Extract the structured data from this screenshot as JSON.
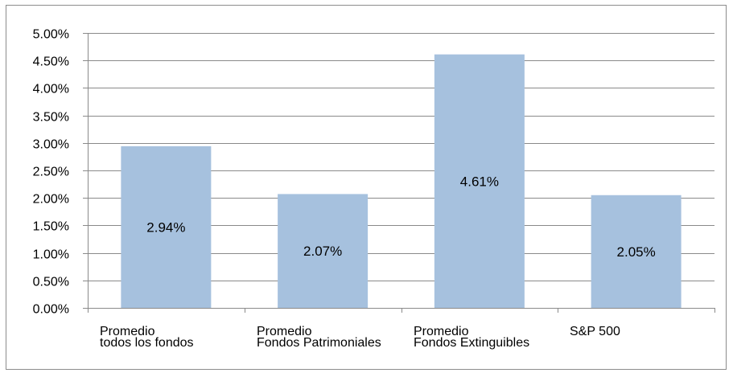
{
  "chart_data": {
    "type": "bar",
    "title": "",
    "xlabel": "",
    "ylabel": "",
    "categories": [
      [
        "Promedio",
        "todos los fondos"
      ],
      [
        "Promedio",
        "Fondos Patrimoniales"
      ],
      [
        "Promedio",
        "Fondos Extinguibles"
      ],
      [
        "S&P 500"
      ]
    ],
    "values": [
      2.94,
      2.07,
      4.61,
      2.05
    ],
    "data_labels": [
      "2.94%",
      "2.07%",
      "4.61%",
      "2.05%"
    ],
    "ylim": [
      0,
      5
    ],
    "yticks": [
      0,
      0.5,
      1,
      1.5,
      2,
      2.5,
      3,
      3.5,
      4,
      4.5,
      5
    ],
    "ytick_labels": [
      "0.00%",
      "0.50%",
      "1.00%",
      "1.50%",
      "2.00%",
      "2.50%",
      "3.00%",
      "3.50%",
      "4.00%",
      "4.50%",
      "5.00%"
    ],
    "grid": true,
    "legend": "none",
    "colors": {
      "bar": "#a6c1de",
      "grid": "#8a8a8a",
      "axis": "#8a8a8a"
    }
  }
}
